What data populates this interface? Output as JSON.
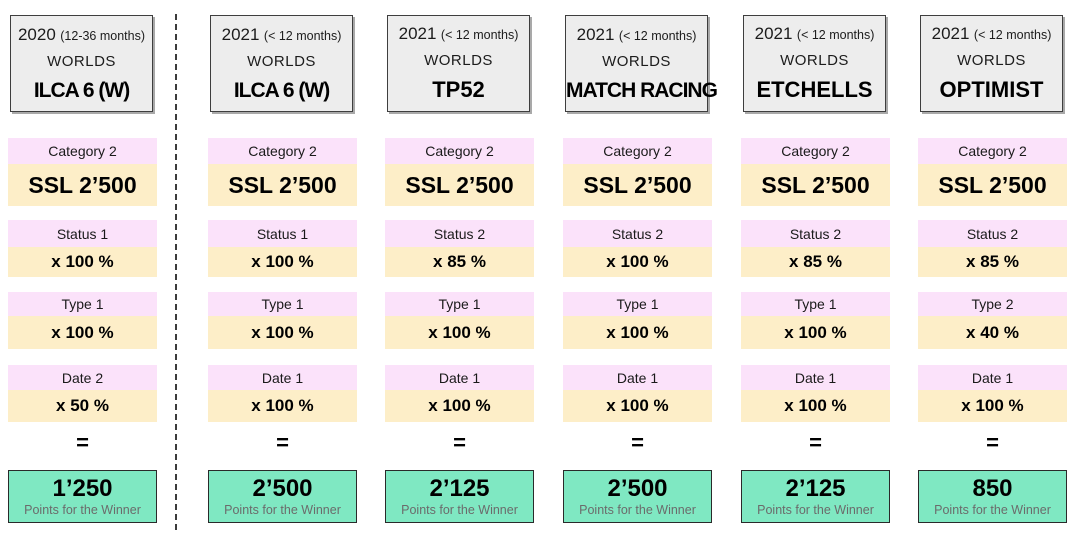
{
  "slide": {
    "equals_sign": "=",
    "points_caption": "Points for the Winner"
  },
  "columns": [
    {
      "year": "2020",
      "window": "(12-36 months)",
      "event": "WORLDS",
      "class_name": "ILCA 6 (W)",
      "category_label": "Category 2",
      "category_value": "SSL 2’500",
      "status_label": "Status 1",
      "status_value": "x 100 %",
      "type_label": "Type 1",
      "type_value": "x 100 %",
      "date_label": "Date 2",
      "date_value": "x 50 %",
      "points": "1’250"
    },
    {
      "year": "2021",
      "window": "(< 12 months)",
      "event": "WORLDS",
      "class_name": "ILCA 6 (W)",
      "category_label": "Category 2",
      "category_value": "SSL 2’500",
      "status_label": "Status 1",
      "status_value": "x 100 %",
      "type_label": "Type 1",
      "type_value": "x 100 %",
      "date_label": "Date 1",
      "date_value": "x 100 %",
      "points": "2’500"
    },
    {
      "year": "2021",
      "window": "(< 12 months)",
      "event": "WORLDS",
      "class_name": "TP52",
      "category_label": "Category 2",
      "category_value": "SSL 2’500",
      "status_label": "Status 2",
      "status_value": "x 85 %",
      "type_label": "Type 1",
      "type_value": "x 100 %",
      "date_label": "Date 1",
      "date_value": "x 100 %",
      "points": "2’125"
    },
    {
      "year": "2021",
      "window": "(< 12 months)",
      "event": "WORLDS",
      "class_name": "MATCH RACING",
      "category_label": "Category 2",
      "category_value": "SSL 2’500",
      "status_label": "Status 2",
      "status_value": "x 100 %",
      "type_label": "Type 1",
      "type_value": "x 100 %",
      "date_label": "Date 1",
      "date_value": "x 100 %",
      "points": "2’500"
    },
    {
      "year": "2021",
      "window": "(< 12 months)",
      "event": "WORLDS",
      "class_name": "ETCHELLS",
      "category_label": "Category 2",
      "category_value": "SSL 2’500",
      "status_label": "Status 2",
      "status_value": "x 85 %",
      "type_label": "Type 1",
      "type_value": "x 100 %",
      "date_label": "Date 1",
      "date_value": "x 100 %",
      "points": "2’125"
    },
    {
      "year": "2021",
      "window": "(< 12 months)",
      "event": "WORLDS",
      "class_name": "OPTIMIST",
      "category_label": "Category 2",
      "category_value": "SSL 2’500",
      "status_label": "Status 2",
      "status_value": "x 85 %",
      "type_label": "Type 2",
      "type_value": "x 40 %",
      "date_label": "Date 1",
      "date_value": "x 100 %",
      "points": "850"
    }
  ],
  "colors": {
    "header_fill": "#ededed",
    "label_fill": "#fbe2fa",
    "value_fill": "#fdeec8",
    "points_fill": "#7fe8c2",
    "caption_text": "#6b6b6b"
  }
}
